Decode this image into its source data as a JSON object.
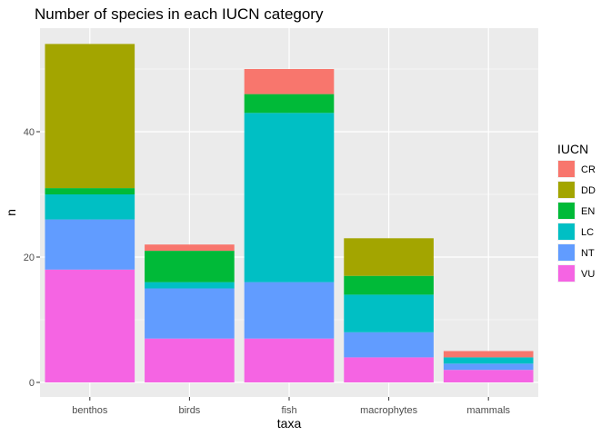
{
  "chart_data": {
    "type": "bar",
    "stacked": true,
    "title": "Number of species in each IUCN category",
    "xlabel": "taxa",
    "ylabel": "n",
    "categories": [
      "benthos",
      "birds",
      "fish",
      "macrophytes",
      "mammals"
    ],
    "ylim": [
      0,
      56
    ],
    "yticks": [
      0,
      20,
      40
    ],
    "grid": true,
    "legend": {
      "title": "IUCN",
      "position": "right"
    },
    "series": [
      {
        "name": "CR",
        "color": "#F8766D",
        "values": [
          0,
          1,
          4,
          0,
          1
        ]
      },
      {
        "name": "DD",
        "color": "#A3A500",
        "values": [
          23,
          0,
          0,
          6,
          0
        ]
      },
      {
        "name": "EN",
        "color": "#00BA38",
        "values": [
          1,
          5,
          3,
          3,
          0
        ]
      },
      {
        "name": "LC",
        "color": "#00BFC4",
        "values": [
          4,
          1,
          27,
          6,
          1
        ]
      },
      {
        "name": "NT",
        "color": "#619CFF",
        "values": [
          8,
          8,
          9,
          4,
          1
        ]
      },
      {
        "name": "VU",
        "color": "#F564E3",
        "values": [
          18,
          7,
          7,
          4,
          2
        ]
      }
    ]
  }
}
